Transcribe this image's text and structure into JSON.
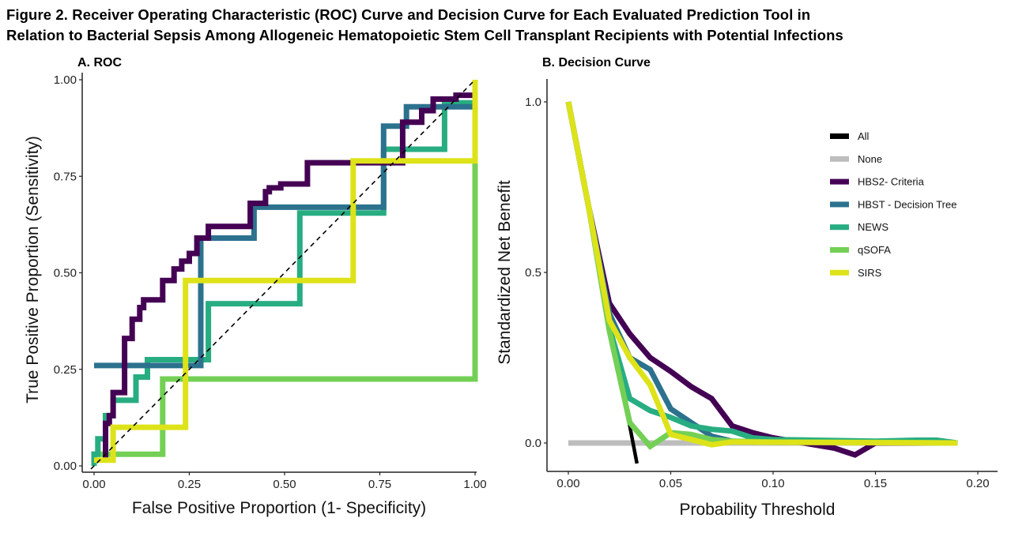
{
  "figure": {
    "title_line1": "Figure 2. Receiver Operating Characteristic (ROC) Curve and Decision Curve for Each Evaluated Prediction Tool in",
    "title_line2": "Relation to Bacterial Sepsis Among Allogeneic Hematopoietic Stem Cell Transplant Recipients with Potential Infections"
  },
  "colors": {
    "All": "#000000",
    "None": "#bdbdbd",
    "HBS2- Criteria": "#440154",
    "HBST - Decision Tree": "#2c728e",
    "NEWS": "#27ad81",
    "qSOFA": "#73d055",
    "SIRS": "#dde318",
    "reference": "#000000"
  },
  "chart_data": [
    {
      "type": "line",
      "subtype": "roc-step",
      "title": "A. ROC",
      "xlabel": "False Positive Proportion (1- Specificity)",
      "ylabel": "True Positive Proportion (Sensitivity)",
      "xlim": [
        0,
        1
      ],
      "ylim": [
        0,
        1
      ],
      "xticks": [
        0,
        0.25,
        0.5,
        0.75,
        1.0
      ],
      "xtick_labels": [
        "0.00",
        "0.25",
        "0.50",
        "0.75",
        "1.00"
      ],
      "yticks": [
        0,
        0.25,
        0.5,
        0.75,
        1.0
      ],
      "ytick_labels": [
        "0.00",
        "0.25",
        "0.50",
        "0.75",
        "1.00"
      ],
      "grid": false,
      "reference_line": {
        "name": "chance",
        "style": "dashed",
        "x": [
          0,
          1
        ],
        "y": [
          0,
          1
        ]
      },
      "series": [
        {
          "name": "qSOFA",
          "x": [
            0,
            0,
            0.18,
            0.18,
            1.0,
            1.0
          ],
          "y": [
            0,
            0.03,
            0.03,
            0.225,
            0.225,
            0.94
          ]
        },
        {
          "name": "NEWS",
          "x": [
            0,
            0,
            0.01,
            0.01,
            0.03,
            0.03,
            0.05,
            0.05,
            0.11,
            0.11,
            0.14,
            0.14,
            0.3,
            0.3,
            0.54,
            0.54,
            0.76,
            0.76,
            0.92,
            0.92,
            1.0
          ],
          "y": [
            0,
            0.03,
            0.03,
            0.07,
            0.07,
            0.13,
            0.13,
            0.17,
            0.17,
            0.23,
            0.23,
            0.275,
            0.275,
            0.42,
            0.42,
            0.655,
            0.655,
            0.82,
            0.82,
            0.94,
            0.94
          ]
        },
        {
          "name": "HBST - Decision Tree",
          "x": [
            0,
            0.28,
            0.28,
            0.42,
            0.42,
            0.76,
            0.76,
            0.82,
            0.82,
            0.87,
            0.87,
            1.0
          ],
          "y": [
            0.26,
            0.26,
            0.59,
            0.59,
            0.67,
            0.67,
            0.88,
            0.88,
            0.93,
            0.93,
            0.93,
            0.93
          ]
        },
        {
          "name": "HBS2- Criteria",
          "x": [
            0.03,
            0.03,
            0.04,
            0.04,
            0.05,
            0.05,
            0.08,
            0.08,
            0.1,
            0.1,
            0.12,
            0.12,
            0.13,
            0.13,
            0.18,
            0.18,
            0.21,
            0.21,
            0.23,
            0.23,
            0.25,
            0.25,
            0.27,
            0.27,
            0.3,
            0.3,
            0.41,
            0.41,
            0.45,
            0.45,
            0.46,
            0.46,
            0.49,
            0.49,
            0.56,
            0.56,
            0.81,
            0.81,
            0.86,
            0.86,
            0.89,
            0.89,
            0.95,
            0.95,
            1.0
          ],
          "y": [
            0.02,
            0.11,
            0.11,
            0.13,
            0.13,
            0.19,
            0.19,
            0.33,
            0.33,
            0.38,
            0.38,
            0.41,
            0.41,
            0.43,
            0.43,
            0.48,
            0.48,
            0.51,
            0.51,
            0.53,
            0.53,
            0.55,
            0.55,
            0.59,
            0.59,
            0.62,
            0.62,
            0.68,
            0.68,
            0.71,
            0.71,
            0.72,
            0.72,
            0.73,
            0.73,
            0.785,
            0.785,
            0.89,
            0.89,
            0.92,
            0.92,
            0.95,
            0.95,
            0.96,
            0.96
          ]
        },
        {
          "name": "SIRS",
          "x": [
            0,
            0.05,
            0.05,
            0.24,
            0.24,
            0.68,
            0.68,
            1.0,
            1.0
          ],
          "y": [
            0.015,
            0.015,
            0.1,
            0.1,
            0.48,
            0.48,
            0.79,
            0.79,
            1.0
          ]
        }
      ]
    },
    {
      "type": "line",
      "subtype": "decision-curve",
      "title": "B. Decision Curve",
      "xlabel": "Probability Threshold",
      "ylabel": "Standardized Net Benefit",
      "xlim": [
        -0.008,
        0.21
      ],
      "ylim": [
        -0.09,
        1.07
      ],
      "xticks": [
        0,
        0.05,
        0.1,
        0.15,
        0.2
      ],
      "xtick_labels": [
        "0.00",
        "0.05",
        "0.10",
        "0.15",
        "0.20"
      ],
      "yticks": [
        0,
        0.5,
        1.0
      ],
      "ytick_labels": [
        "0.0",
        "0.5",
        "1.0"
      ],
      "grid": false,
      "legend": {
        "position": "top-right",
        "entries": [
          "All",
          "None",
          "HBS2- Criteria",
          "HBST - Decision Tree",
          "NEWS",
          "qSOFA",
          "SIRS"
        ]
      },
      "series": [
        {
          "name": "All",
          "x": [
            0,
            0.01,
            0.02,
            0.03,
            0.0335
          ],
          "y": [
            1.0,
            0.69,
            0.36,
            0.05,
            -0.06
          ]
        },
        {
          "name": "None",
          "x": [
            0,
            0.19
          ],
          "y": [
            0,
            0
          ]
        },
        {
          "name": "HBS2- Criteria",
          "x": [
            0,
            0.01,
            0.02,
            0.03,
            0.04,
            0.05,
            0.06,
            0.07,
            0.08,
            0.09,
            0.1,
            0.11,
            0.12,
            0.13,
            0.14,
            0.15,
            0.16,
            0.17,
            0.18,
            0.19
          ],
          "y": [
            1.0,
            0.69,
            0.41,
            0.32,
            0.25,
            0.21,
            0.165,
            0.13,
            0.05,
            0.03,
            0.015,
            0.005,
            -0.005,
            -0.015,
            -0.035,
            0.0,
            0.0,
            0.0,
            0.0,
            0.0
          ]
        },
        {
          "name": "HBST - Decision Tree",
          "x": [
            0,
            0.01,
            0.02,
            0.03,
            0.04,
            0.05,
            0.06,
            0.07,
            0.08,
            0.09,
            0.1,
            0.12,
            0.15,
            0.19
          ],
          "y": [
            1.0,
            0.69,
            0.38,
            0.25,
            0.215,
            0.1,
            0.06,
            0.02,
            0.005,
            0.003,
            0.002,
            0.002,
            0.002,
            0.0
          ]
        },
        {
          "name": "NEWS",
          "x": [
            0,
            0.01,
            0.02,
            0.03,
            0.04,
            0.05,
            0.06,
            0.07,
            0.08,
            0.09,
            0.1,
            0.12,
            0.15,
            0.17,
            0.18,
            0.19
          ],
          "y": [
            1.0,
            0.69,
            0.34,
            0.13,
            0.095,
            0.075,
            0.05,
            0.04,
            0.035,
            0.015,
            0.01,
            0.008,
            0.005,
            0.008,
            0.008,
            0.0
          ]
        },
        {
          "name": "qSOFA",
          "x": [
            0,
            0.01,
            0.02,
            0.03,
            0.04,
            0.05,
            0.06,
            0.07,
            0.08,
            0.1,
            0.15,
            0.19
          ],
          "y": [
            1.0,
            0.69,
            0.33,
            0.06,
            -0.01,
            0.03,
            0.025,
            0.01,
            0.005,
            0.003,
            0.002,
            0.0
          ]
        },
        {
          "name": "SIRS",
          "x": [
            0,
            0.01,
            0.02,
            0.03,
            0.04,
            0.05,
            0.06,
            0.07,
            0.08,
            0.1,
            0.15,
            0.19
          ],
          "y": [
            1.0,
            0.69,
            0.36,
            0.25,
            0.17,
            0.025,
            0.01,
            -0.005,
            0.003,
            0.002,
            0.001,
            0.0
          ]
        }
      ]
    }
  ]
}
